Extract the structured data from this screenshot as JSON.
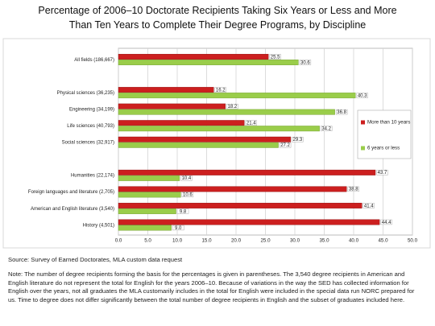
{
  "chart_data": {
    "type": "hbar",
    "title": "Percentage of 2006–10 Doctorate Recipients Taking Six Years or Less and More Than Ten Years to Complete Their Degree Programs, by Discipline",
    "categories": [
      "All fields (186,667)",
      null,
      "Physical sciences (36,235)",
      "Engineering (34,199)",
      "Life sciences (40,793)",
      "Social sciences (32,917)",
      null,
      "Humanities (22,174)",
      "Foreign languages and literature (2,705)",
      "American and English literature (3,540)",
      "History (4,501)"
    ],
    "series": [
      {
        "name": "More than 10 years",
        "color": "#cc1f1f",
        "values": [
          25.5,
          null,
          16.2,
          18.2,
          21.4,
          29.3,
          null,
          43.7,
          38.8,
          41.4,
          44.4
        ]
      },
      {
        "name": "6 years or less",
        "color": "#9acd4a",
        "values": [
          30.6,
          null,
          40.3,
          36.8,
          34.2,
          27.2,
          null,
          10.4,
          10.6,
          9.8,
          9
        ],
        "value_labels": [
          "30.6",
          null,
          "40.3",
          "36.8",
          "34.2",
          "27.2",
          null,
          "10.4",
          "10.6",
          "9.8",
          "9.0"
        ]
      }
    ],
    "xlim": [
      0,
      50
    ],
    "xticks": [
      {
        "value": 0,
        "label": "0.0"
      },
      {
        "value": 5,
        "label": "5.0"
      },
      {
        "value": 10,
        "label": "10.0"
      },
      {
        "value": 15,
        "label": "15.0"
      },
      {
        "value": 20,
        "label": "20.0"
      },
      {
        "value": 25,
        "label": "25.0"
      },
      {
        "value": 30,
        "label": "30.0"
      },
      {
        "value": 35,
        "label": "35.0"
      },
      {
        "value": 40,
        "label": "40.0"
      },
      {
        "value": 45,
        "label": "45.0"
      },
      {
        "value": 50,
        "label": "50.0"
      }
    ],
    "grid": true,
    "legend": "right",
    "source": "Source: Survey of Earned Doctorates, MLA custom data request",
    "note": "Note: The number of degree recipients forming the basis for the percentages is given in parentheses. The 3,540 degree recipients in American and English literature do not represent the total for English for the years 2006–10. Because of variations in the way the SED has collected information for English over the years, not all graduates the MLA customarily includes in the total for English were included in the special data run NORC prepared for us. Time to degree does not differ significantly between the total number of degree recipients in English and the subset of graduates included here."
  }
}
